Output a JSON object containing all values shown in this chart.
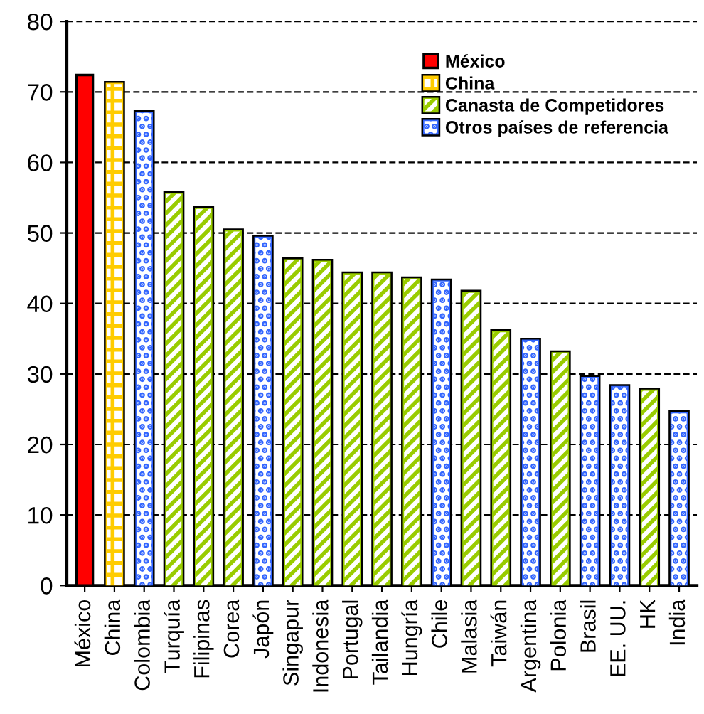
{
  "chart_data": {
    "type": "bar",
    "categories": [
      "México",
      "China",
      "Colombia",
      "Turquía",
      "Filipinas",
      "Corea",
      "Japón",
      "Singapur",
      "Indonesia",
      "Portugal",
      "Tailandia",
      "Hungría",
      "Chile",
      "Malasia",
      "Taiwán",
      "Argentina",
      "Polonia",
      "Brasil",
      "EE. UU.",
      "HK",
      "India"
    ],
    "series": [
      {
        "name": "México",
        "color": "#ff0000",
        "values": [
          72.4,
          null,
          null,
          null,
          null,
          null,
          null,
          null,
          null,
          null,
          null,
          null,
          null,
          null,
          null,
          null,
          null,
          null,
          null,
          null,
          null
        ]
      },
      {
        "name": "China",
        "color": "#ffcc00",
        "values": [
          null,
          71.2,
          null,
          null,
          null,
          null,
          null,
          null,
          null,
          null,
          null,
          null,
          null,
          null,
          null,
          null,
          null,
          null,
          null,
          null,
          null
        ]
      },
      {
        "name": "Canasta de Competidores",
        "color": "#99cc00",
        "values": [
          null,
          null,
          null,
          55.6,
          53.5,
          50.3,
          null,
          46.2,
          46.0,
          44.2,
          44.2,
          43.5,
          null,
          41.6,
          36.0,
          null,
          33.0,
          null,
          null,
          27.7,
          null
        ]
      },
      {
        "name": "Otros países de referencia",
        "color": "#3366ff",
        "values": [
          null,
          null,
          67.1,
          null,
          null,
          null,
          49.4,
          null,
          null,
          null,
          null,
          null,
          43.2,
          null,
          null,
          34.8,
          null,
          29.5,
          28.2,
          null,
          24.5
        ]
      }
    ],
    "ylim": [
      0,
      80
    ],
    "yticks": [
      0,
      10,
      20,
      30,
      40,
      50,
      60,
      70,
      80
    ],
    "grid": "y",
    "legend": "top right"
  }
}
